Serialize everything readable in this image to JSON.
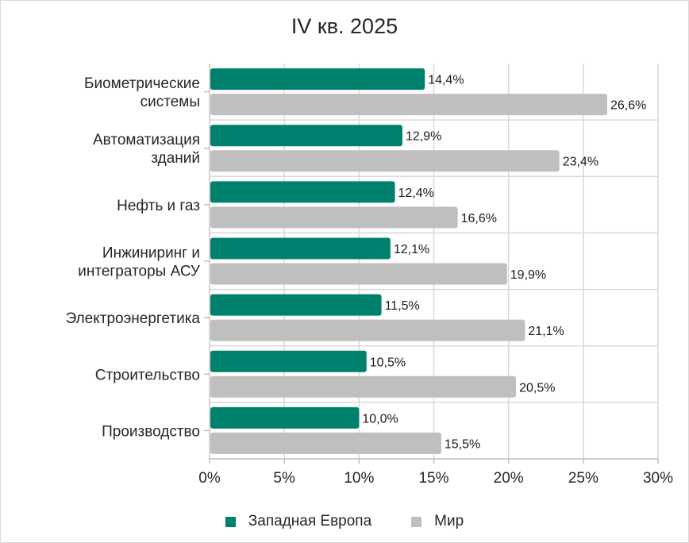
{
  "chart_data": {
    "type": "bar",
    "orientation": "horizontal",
    "title": "IV кв. 2025",
    "xlabel": "",
    "ylabel": "",
    "xlim": [
      0,
      30
    ],
    "x_ticks": [
      "0%",
      "5%",
      "10%",
      "15%",
      "20%",
      "25%",
      "30%"
    ],
    "x_tick_values": [
      0,
      5,
      10,
      15,
      20,
      25,
      30
    ],
    "grid": true,
    "legend_position": "bottom",
    "categories": [
      "Биометрические системы",
      "Автоматизация зданий",
      "Нефть и газ",
      "Инжиниринг и интеграторы АСУ",
      "Электроэнергетика",
      "Строительство",
      "Производство"
    ],
    "category_lines": [
      [
        "Биометрические",
        "системы"
      ],
      [
        "Автоматизация",
        "зданий"
      ],
      [
        "Нефть и газ"
      ],
      [
        "Инжиниринг и",
        "интеграторы АСУ"
      ],
      [
        "Электроэнергетика"
      ],
      [
        "Строительство"
      ],
      [
        "Производство"
      ]
    ],
    "series": [
      {
        "name": "Западная Европа",
        "color": "#00816d",
        "values": [
          14.4,
          12.9,
          12.4,
          12.1,
          11.5,
          10.5,
          10.0
        ],
        "labels": [
          "14,4%",
          "12,9%",
          "12,4%",
          "12,1%",
          "11,5%",
          "10,5%",
          "10,0%"
        ]
      },
      {
        "name": "Мир",
        "color": "#bfbfbf",
        "values": [
          26.6,
          23.4,
          16.6,
          19.9,
          21.1,
          20.5,
          15.5
        ],
        "labels": [
          "26,6%",
          "23,4%",
          "16,6%",
          "19,9%",
          "21,1%",
          "20,5%",
          "15,5%"
        ]
      }
    ]
  }
}
